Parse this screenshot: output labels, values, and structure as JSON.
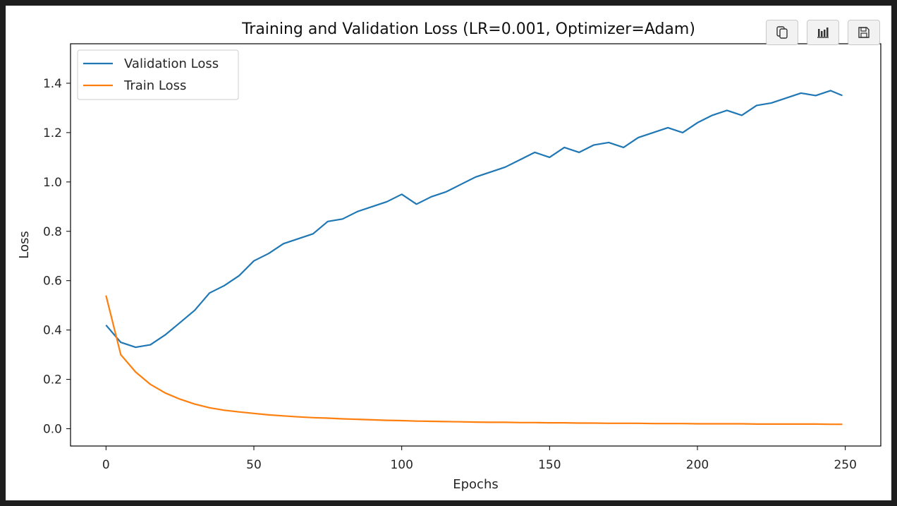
{
  "toolbar": {
    "buttons": [
      {
        "name": "copy",
        "icon": "copy-icon"
      },
      {
        "name": "chart",
        "icon": "bar-chart-icon"
      },
      {
        "name": "save",
        "icon": "save-icon"
      }
    ]
  },
  "chart_data": {
    "type": "line",
    "title": "Training and Validation Loss (LR=0.001, Optimizer=Adam)",
    "xlabel": "Epochs",
    "ylabel": "Loss",
    "xlim": [
      -12,
      262
    ],
    "ylim": [
      -0.07,
      1.56
    ],
    "xticks": [
      0,
      50,
      100,
      150,
      200,
      250
    ],
    "yticks": [
      0.0,
      0.2,
      0.4,
      0.6,
      0.8,
      1.0,
      1.2,
      1.4
    ],
    "grid": false,
    "legend_position": "upper-left",
    "x": [
      0,
      5,
      10,
      15,
      20,
      25,
      30,
      35,
      40,
      45,
      50,
      55,
      60,
      65,
      70,
      75,
      80,
      85,
      90,
      95,
      100,
      105,
      110,
      115,
      120,
      125,
      130,
      135,
      140,
      145,
      150,
      155,
      160,
      165,
      170,
      175,
      180,
      185,
      190,
      195,
      200,
      205,
      210,
      215,
      220,
      225,
      230,
      235,
      240,
      245,
      249
    ],
    "series": [
      {
        "name": "Validation Loss",
        "color": "#1f77b4",
        "values": [
          0.42,
          0.35,
          0.33,
          0.34,
          0.38,
          0.43,
          0.48,
          0.55,
          0.58,
          0.62,
          0.68,
          0.71,
          0.75,
          0.77,
          0.79,
          0.84,
          0.85,
          0.88,
          0.9,
          0.92,
          0.95,
          0.91,
          0.94,
          0.96,
          0.99,
          1.02,
          1.04,
          1.06,
          1.09,
          1.12,
          1.1,
          1.14,
          1.12,
          1.15,
          1.16,
          1.14,
          1.18,
          1.2,
          1.22,
          1.2,
          1.24,
          1.27,
          1.29,
          1.27,
          1.31,
          1.32,
          1.34,
          1.36,
          1.35,
          1.37,
          1.35
        ]
      },
      {
        "name": "Train Loss",
        "color": "#ff7f0e",
        "values": [
          0.54,
          0.3,
          0.23,
          0.18,
          0.145,
          0.12,
          0.1,
          0.085,
          0.075,
          0.068,
          0.062,
          0.056,
          0.052,
          0.048,
          0.045,
          0.043,
          0.04,
          0.038,
          0.036,
          0.034,
          0.033,
          0.031,
          0.03,
          0.029,
          0.028,
          0.027,
          0.026,
          0.026,
          0.025,
          0.025,
          0.024,
          0.024,
          0.023,
          0.023,
          0.022,
          0.022,
          0.022,
          0.021,
          0.021,
          0.021,
          0.02,
          0.02,
          0.02,
          0.02,
          0.019,
          0.019,
          0.019,
          0.019,
          0.019,
          0.018,
          0.018
        ]
      }
    ]
  }
}
